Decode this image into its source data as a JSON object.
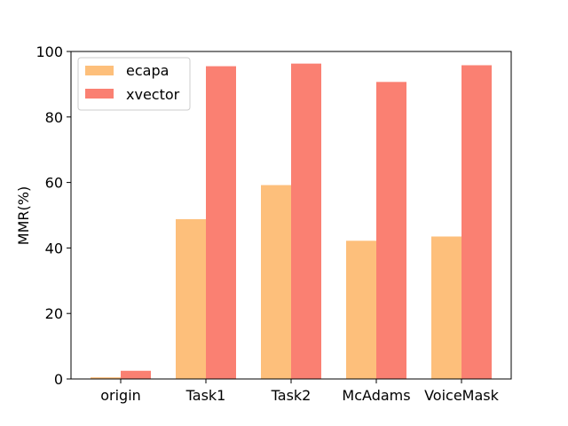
{
  "chart_data": {
    "type": "bar",
    "title": "",
    "xlabel": "",
    "ylabel": "MMR(%)",
    "categories": [
      "origin",
      "Task1",
      "Task2",
      "McAdams",
      "VoiceMask"
    ],
    "series": [
      {
        "name": "ecapa",
        "values": [
          0.5,
          48.8,
          59.2,
          42.2,
          43.5
        ],
        "color": "#fdbf7b"
      },
      {
        "name": "xvector",
        "values": [
          2.5,
          95.5,
          96.3,
          90.7,
          95.8
        ],
        "color": "#fa8072"
      }
    ],
    "ylim": [
      0,
      100
    ],
    "yticks": [
      0,
      20,
      40,
      60,
      80,
      100
    ],
    "grid": false,
    "legend_position": "top-left"
  }
}
